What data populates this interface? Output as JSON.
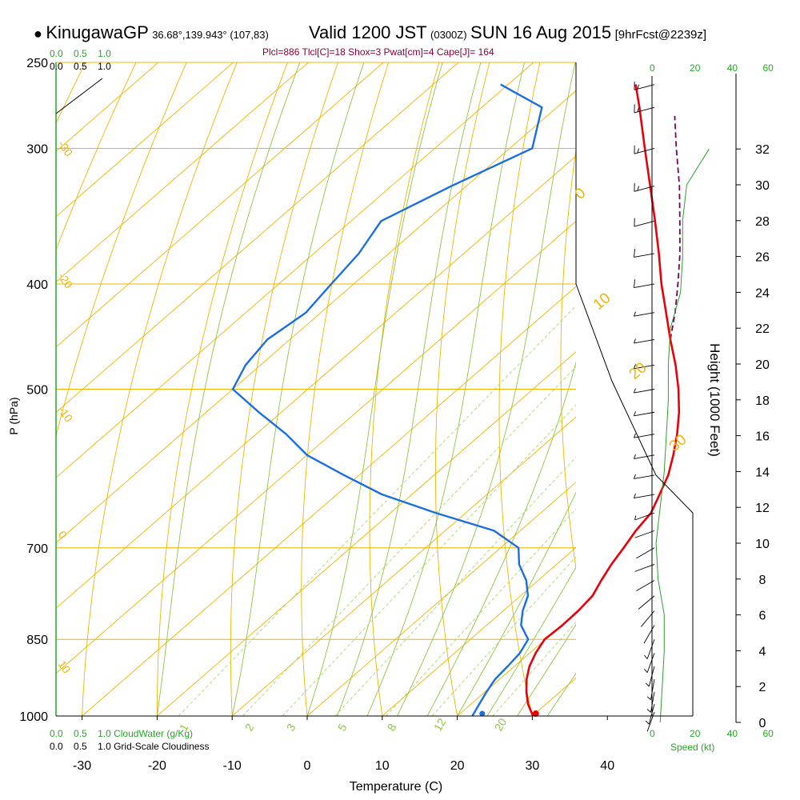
{
  "header": {
    "station": "KinugawaGP",
    "coords": "36.68°,139.943° (107,83)",
    "valid": "Valid 1200 JST",
    "utc": "(0300Z)",
    "date": "SUN 16 Aug 2015",
    "forecast": "[9hrFcst@2239z]",
    "indices": "Plcl=886 Tlcl[C]=18 Shox=3 Pwat[cm]=4 Cape[J]= 164"
  },
  "legend": {
    "cloud_water_label": "CloudWater (g/Kg)",
    "cloudiness_label": "Grid-Scale Cloudiness",
    "scale_ticks": [
      "0.0",
      "0.5",
      "1.0"
    ],
    "speed_label": "Speed (kt)",
    "speed_ticks": [
      "0",
      "20",
      "40",
      "60"
    ]
  },
  "colors": {
    "isobar": "#f0b400",
    "dry_adiabat": "#f0b400",
    "moist_adiabat": "#8cc63f",
    "mixing_ratio": "#a6d96a",
    "temperature": "#e8000b",
    "dewpoint": "#1a6fe0",
    "parcel": "#7a0060",
    "wind_speed": "#2ca02c",
    "accent_green": "#22aa22",
    "header_maroon": "#8b003a"
  },
  "chart_data": {
    "type": "skew-t",
    "xlabel": "Temperature (C)",
    "ylabel": "P (hPa)",
    "right_ylabel": "Height (1000 Feet)",
    "x_ticks": [
      -30,
      -20,
      -10,
      0,
      10,
      20,
      30,
      40
    ],
    "p_ticks": [
      250,
      300,
      400,
      500,
      700,
      850,
      1000
    ],
    "height_ticks": [
      0,
      2,
      4,
      6,
      8,
      10,
      12,
      14,
      16,
      18,
      20,
      22,
      24,
      26,
      28,
      30,
      32
    ],
    "dry_adiabat_labels": [
      "-30",
      "-20",
      "-10",
      "0",
      "10",
      "20",
      "30"
    ],
    "moist_adiabat_labels": [
      "0",
      "10",
      "20",
      "30"
    ],
    "mixing_ratio_labels": [
      "1",
      "2",
      "3",
      "5",
      "8",
      "12",
      "20"
    ],
    "temperature": {
      "pressure": [
        1000,
        975,
        950,
        925,
        900,
        875,
        850,
        825,
        800,
        775,
        750,
        725,
        700,
        675,
        650,
        625,
        600,
        575,
        550,
        525,
        500,
        475,
        450,
        425,
        400,
        375,
        350,
        325,
        300,
        275,
        262
      ],
      "values": [
        30.1,
        27.6,
        25.5,
        23.6,
        22.0,
        20.8,
        19.9,
        20.1,
        20.0,
        19.6,
        18.4,
        17.3,
        16.4,
        15.4,
        14.7,
        13.0,
        11.2,
        8.8,
        6.1,
        3.0,
        -0.6,
        -4.7,
        -9.3,
        -14.0,
        -19.0,
        -24.0,
        -29.5,
        -35.5,
        -42.0,
        -49.0,
        -53.0
      ]
    },
    "dewpoint": {
      "pressure": [
        1000,
        975,
        950,
        925,
        900,
        875,
        850,
        825,
        800,
        775,
        750,
        725,
        700,
        675,
        650,
        625,
        600,
        575,
        550,
        525,
        500,
        475,
        450,
        425,
        400,
        375,
        350,
        325,
        300,
        275,
        262
      ],
      "values": [
        22.0,
        21.1,
        20.2,
        19.4,
        19.1,
        18.7,
        17.7,
        14.6,
        12.6,
        11.0,
        8.4,
        5.0,
        2.4,
        -3.5,
        -14.0,
        -24.0,
        -32.0,
        -40.0,
        -46.0,
        -53.0,
        -60.0,
        -62.0,
        -63.0,
        -62.0,
        -63.0,
        -64.0,
        -66.0,
        -62.0,
        -57.0,
        -62.0,
        -71.0
      ]
    },
    "parcel": {
      "pressure": [
        450,
        425,
        400,
        375,
        350,
        325,
        300,
        280
      ],
      "values": [
        -9.3,
        -12.8,
        -16.8,
        -21.2,
        -26.2,
        -31.6,
        -37.8,
        -43.0
      ]
    },
    "surface_temperature": 30.1,
    "surface_dewpoint": 22.0,
    "wind_speed_profile": {
      "height_kft": [
        0,
        2,
        4,
        6,
        8,
        10,
        12,
        14,
        16,
        18,
        20,
        22,
        24,
        26,
        28,
        30,
        32
      ],
      "speed_kt": [
        4,
        5,
        6,
        6,
        3,
        2,
        4,
        6,
        7,
        8,
        8,
        9,
        14,
        15,
        15,
        17,
        28
      ]
    },
    "wind_barbs": {
      "pressure": [
        1000,
        975,
        950,
        925,
        900,
        875,
        850,
        825,
        800,
        775,
        750,
        725,
        700,
        675,
        650,
        625,
        600,
        575,
        550,
        525,
        500,
        475,
        450,
        425,
        400,
        375,
        350,
        325,
        300,
        275,
        262
      ],
      "direction_deg": [
        200,
        195,
        190,
        190,
        195,
        200,
        200,
        210,
        220,
        230,
        240,
        250,
        240,
        250,
        250,
        260,
        260,
        260,
        260,
        260,
        260,
        260,
        260,
        260,
        260,
        260,
        255,
        255,
        255,
        255,
        255
      ],
      "speed_kt": [
        4,
        5,
        6,
        6,
        6,
        5,
        5,
        4,
        3,
        2,
        2,
        3,
        3,
        4,
        5,
        6,
        6,
        7,
        7,
        8,
        8,
        8,
        9,
        9,
        10,
        12,
        14,
        15,
        15,
        16,
        17
      ]
    }
  }
}
